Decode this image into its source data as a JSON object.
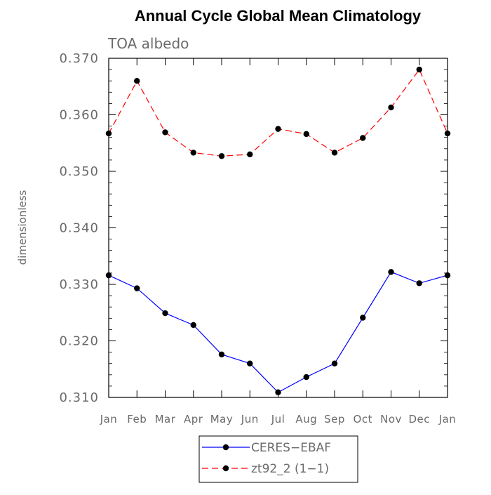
{
  "chart_data": {
    "type": "line",
    "title": "Annual Cycle Global Mean Climatology",
    "panel_label": "TOA albedo",
    "xlabel": "",
    "ylabel": "dimensionless",
    "categories": [
      "Jan",
      "Feb",
      "Mar",
      "Apr",
      "May",
      "Jun",
      "Jul",
      "Aug",
      "Sep",
      "Oct",
      "Nov",
      "Dec",
      "Jan"
    ],
    "ylim": [
      0.31,
      0.37
    ],
    "yticks": [
      0.31,
      0.32,
      0.33,
      0.34,
      0.35,
      0.36,
      0.37
    ],
    "ytick_labels": [
      "0.310",
      "0.320",
      "0.330",
      "0.340",
      "0.350",
      "0.360",
      "0.370"
    ],
    "grid": false,
    "legend_position": "bottom",
    "series": [
      {
        "name": "CERES−EBAF",
        "color": "#0000ff",
        "line_style": "solid",
        "marker": "filled-circle",
        "values": [
          0.3316,
          0.3293,
          0.3249,
          0.3228,
          0.3176,
          0.316,
          0.3109,
          0.3136,
          0.316,
          0.3241,
          0.3322,
          0.3302,
          0.3316
        ]
      },
      {
        "name": "zt92_2 (1−1)",
        "color": "#ff0000",
        "line_style": "dashed",
        "marker": "filled-circle",
        "values": [
          0.3567,
          0.366,
          0.3569,
          0.3533,
          0.3527,
          0.353,
          0.3575,
          0.3566,
          0.3533,
          0.3559,
          0.3613,
          0.368,
          0.3567
        ]
      }
    ]
  }
}
